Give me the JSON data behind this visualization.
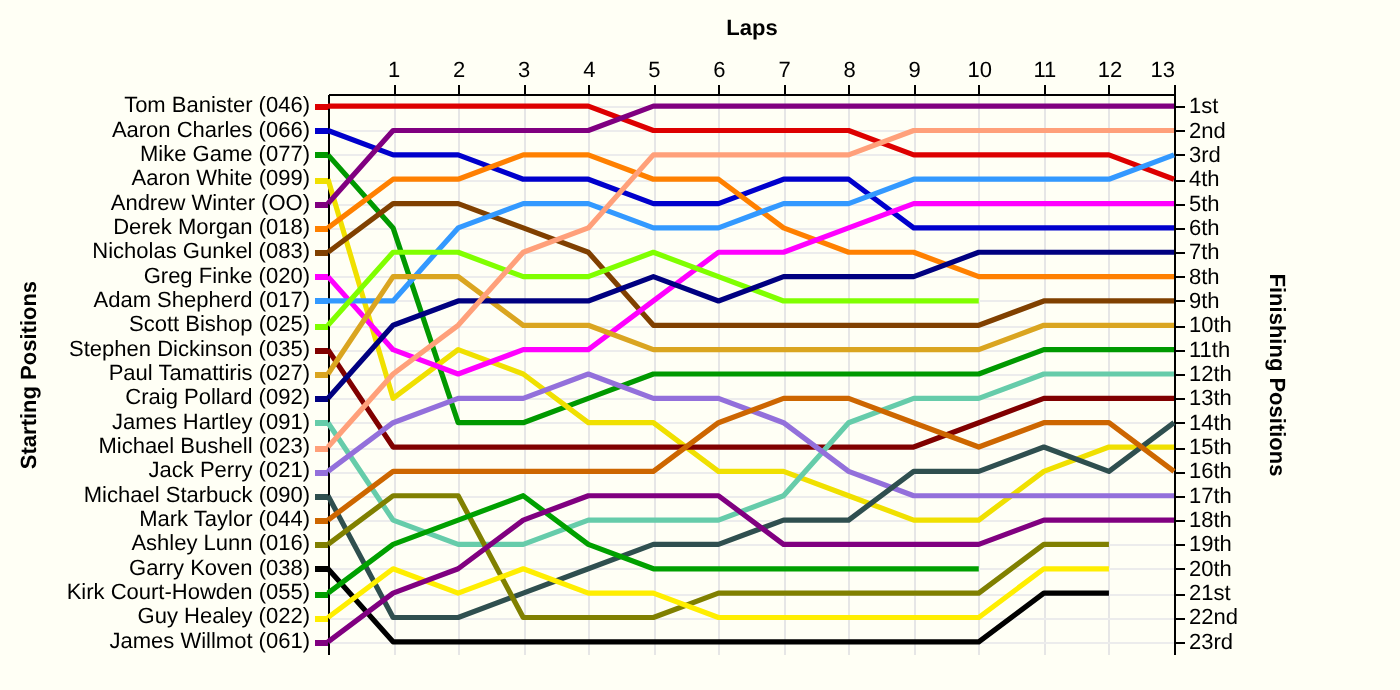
{
  "chart_data": {
    "type": "line",
    "xlabel": "Laps",
    "ylabel": "Finishing Positions",
    "annotations": [
      "Starting Positions"
    ],
    "x": [
      0,
      1,
      2,
      3,
      4,
      5,
      6,
      7,
      8,
      9,
      10,
      11,
      12,
      13
    ],
    "xlim": [
      0,
      13
    ],
    "xticks": [
      1,
      2,
      3,
      4,
      5,
      6,
      7,
      8,
      9,
      10,
      11,
      12,
      13
    ],
    "ylim": [
      23.5,
      0.5
    ],
    "yticks": [
      {
        "value": 1,
        "label": "1st"
      },
      {
        "value": 2,
        "label": "2nd"
      },
      {
        "value": 3,
        "label": "3rd"
      },
      {
        "value": 4,
        "label": "4th"
      },
      {
        "value": 5,
        "label": "5th"
      },
      {
        "value": 6,
        "label": "6th"
      },
      {
        "value": 7,
        "label": "7th"
      },
      {
        "value": 8,
        "label": "8th"
      },
      {
        "value": 9,
        "label": "9th"
      },
      {
        "value": 10,
        "label": "10th"
      },
      {
        "value": 11,
        "label": "11th"
      },
      {
        "value": 12,
        "label": "12th"
      },
      {
        "value": 13,
        "label": "13th"
      },
      {
        "value": 14,
        "label": "14th"
      },
      {
        "value": 15,
        "label": "15th"
      },
      {
        "value": 16,
        "label": "16th"
      },
      {
        "value": 17,
        "label": "17th"
      },
      {
        "value": 18,
        "label": "18th"
      },
      {
        "value": 19,
        "label": "19th"
      },
      {
        "value": 20,
        "label": "20th"
      },
      {
        "value": 21,
        "label": "21st"
      },
      {
        "value": 22,
        "label": "22nd"
      },
      {
        "value": 23,
        "label": "23rd"
      }
    ],
    "grid": true,
    "legend": "left",
    "marker": "none",
    "line_style": "solid",
    "series": [
      {
        "name": "Tom Banister (046)",
        "color": "#dd0000",
        "values": [
          1,
          1,
          1,
          1,
          1,
          2,
          2,
          2,
          2,
          3,
          3,
          3,
          3,
          4
        ]
      },
      {
        "name": "Aaron Charles (066)",
        "color": "#0000cc",
        "values": [
          2,
          3,
          3,
          4,
          4,
          5,
          5,
          4,
          4,
          6,
          6,
          6,
          6,
          6
        ]
      },
      {
        "name": "Mike Game (077)",
        "color": "#009900",
        "values": [
          3,
          6,
          14,
          14,
          13,
          12,
          12,
          12,
          12,
          12,
          12,
          11,
          11,
          11
        ]
      },
      {
        "name": "Aaron White (099)",
        "color": "#f0e000",
        "values": [
          4,
          13,
          11,
          12,
          14,
          14,
          16,
          16,
          17,
          18,
          18,
          16,
          15,
          15
        ]
      },
      {
        "name": "Andrew Winter (OO)",
        "color": "#800080",
        "values": [
          5,
          2,
          2,
          2,
          2,
          1,
          1,
          1,
          1,
          1,
          1,
          1,
          1,
          1
        ]
      },
      {
        "name": "Derek Morgan (018)",
        "color": "#ff8000",
        "values": [
          6,
          4,
          4,
          3,
          3,
          4,
          4,
          6,
          7,
          7,
          8,
          8,
          8,
          8
        ]
      },
      {
        "name": "Nicholas Gunkel (083)",
        "color": "#804000",
        "values": [
          7,
          5,
          5,
          6,
          7,
          10,
          10,
          10,
          10,
          10,
          10,
          9,
          9,
          9
        ]
      },
      {
        "name": "Greg Finke (020)",
        "color": "#ff00ff",
        "values": [
          8,
          11,
          12,
          11,
          11,
          9,
          7,
          7,
          6,
          5,
          5,
          5,
          5,
          5
        ]
      },
      {
        "name": "Adam Shepherd (017)",
        "color": "#3399ff",
        "values": [
          9,
          9,
          6,
          5,
          5,
          6,
          6,
          5,
          5,
          4,
          4,
          4,
          4,
          3
        ]
      },
      {
        "name": "Scott Bishop (025)",
        "color": "#80ff00",
        "values": [
          10,
          7,
          7,
          8,
          8,
          7,
          8,
          9,
          9,
          9,
          9,
          null,
          null,
          null
        ]
      },
      {
        "name": "Stephen Dickinson (035)",
        "color": "#800000",
        "values": [
          11,
          15,
          15,
          15,
          15,
          15,
          15,
          15,
          15,
          15,
          14,
          13,
          13,
          13
        ]
      },
      {
        "name": "Paul Tamattiris (027)",
        "color": "#daa520",
        "values": [
          12,
          8,
          8,
          10,
          10,
          11,
          11,
          11,
          11,
          11,
          11,
          10,
          10,
          10
        ]
      },
      {
        "name": "Craig Pollard (092)",
        "color": "#000080",
        "values": [
          13,
          10,
          9,
          9,
          9,
          8,
          9,
          8,
          8,
          8,
          7,
          7,
          7,
          7
        ]
      },
      {
        "name": "James Hartley (091)",
        "color": "#66ccaa",
        "values": [
          14,
          18,
          19,
          19,
          18,
          18,
          18,
          17,
          14,
          13,
          13,
          12,
          12,
          12
        ]
      },
      {
        "name": "Michael Bushell (023)",
        "color": "#ffa07a",
        "values": [
          15,
          12,
          10,
          7,
          6,
          3,
          3,
          3,
          3,
          2,
          2,
          2,
          2,
          2
        ]
      },
      {
        "name": "Jack Perry (021)",
        "color": "#9370db",
        "values": [
          16,
          14,
          13,
          13,
          12,
          13,
          13,
          14,
          16,
          17,
          17,
          17,
          17,
          17
        ]
      },
      {
        "name": "Michael Starbuck (090)",
        "color": "#2f4f4f",
        "values": [
          17,
          22,
          22,
          21,
          20,
          19,
          19,
          18,
          18,
          16,
          16,
          15,
          16,
          14
        ]
      },
      {
        "name": "Mark Taylor (044)",
        "color": "#cd6600",
        "values": [
          18,
          16,
          16,
          16,
          16,
          16,
          14,
          13,
          13,
          14,
          15,
          14,
          14,
          16
        ]
      },
      {
        "name": "Ashley Lunn (016)",
        "color": "#808000",
        "values": [
          19,
          17,
          17,
          22,
          22,
          22,
          21,
          21,
          21,
          21,
          21,
          19,
          19,
          null
        ]
      },
      {
        "name": "Garry Koven (038)",
        "color": "#000000",
        "values": [
          20,
          23,
          23,
          23,
          23,
          23,
          23,
          23,
          23,
          23,
          23,
          21,
          21,
          null
        ]
      },
      {
        "name": "Kirk Court-Howden (055)",
        "color": "#00a000",
        "values": [
          21,
          19,
          18,
          17,
          19,
          20,
          20,
          20,
          20,
          20,
          20,
          null,
          null,
          null
        ]
      },
      {
        "name": "Guy Healey (022)",
        "color": "#ffee00",
        "values": [
          22,
          20,
          21,
          20,
          21,
          21,
          22,
          22,
          22,
          22,
          22,
          20,
          20,
          null
        ]
      },
      {
        "name": "James Willmot (061)",
        "color": "#800080",
        "values": [
          23,
          21,
          20,
          18,
          17,
          17,
          17,
          19,
          19,
          19,
          19,
          18,
          18,
          18
        ]
      }
    ]
  }
}
